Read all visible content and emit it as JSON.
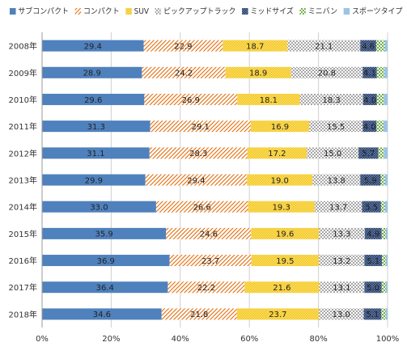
{
  "chart_data": {
    "type": "bar",
    "orientation": "horizontal",
    "stacked": true,
    "percent": true,
    "categories": [
      "2008年",
      "2009年",
      "2010年",
      "2011年",
      "2012年",
      "2013年",
      "2014年",
      "2015年",
      "2016年",
      "2017年",
      "2018年"
    ],
    "series": [
      {
        "name": "サブコンパクト",
        "color": "#4f81bd",
        "pattern": "solid",
        "values": [
          29.4,
          28.9,
          29.6,
          31.3,
          31.1,
          29.9,
          33.0,
          35.9,
          36.9,
          36.4,
          34.6
        ]
      },
      {
        "name": "コンパクト",
        "color": "#e46c0a",
        "pattern": "diag",
        "values": [
          22.9,
          24.2,
          26.9,
          29.1,
          28.3,
          29.4,
          26.6,
          24.6,
          23.7,
          22.2,
          21.8
        ]
      },
      {
        "name": "SUV",
        "color": "#f5c518",
        "pattern": "dots",
        "values": [
          18.7,
          18.9,
          18.1,
          16.9,
          17.2,
          19.0,
          19.3,
          19.6,
          19.5,
          21.6,
          23.7
        ]
      },
      {
        "name": "ピックアップトラック",
        "color": "#a6a6a6",
        "pattern": "check",
        "values": [
          21.1,
          20.8,
          18.3,
          15.5,
          15.0,
          13.8,
          13.7,
          13.3,
          13.2,
          13.1,
          13.0
        ]
      },
      {
        "name": "ミッドサイズ",
        "color": "#1f3864",
        "pattern": "dots",
        "values": [
          4.6,
          4.1,
          4.0,
          4.0,
          5.7,
          5.9,
          5.5,
          4.9,
          5.1,
          5.0,
          5.1
        ]
      },
      {
        "name": "ミニバン",
        "color": "#70ad47",
        "pattern": "check",
        "values": [
          2.5,
          2.2,
          2.0,
          2.0,
          1.7,
          1.2,
          1.1,
          1.2,
          1.1,
          1.2,
          1.3
        ]
      },
      {
        "name": "スポーツタイプ",
        "color": "#9dc3e6",
        "pattern": "solid",
        "values": [
          0.8,
          0.9,
          1.1,
          1.2,
          1.0,
          0.8,
          0.8,
          0.5,
          0.5,
          0.5,
          0.5
        ]
      }
    ],
    "labeled_series": [
      0,
      1,
      2,
      3,
      4
    ],
    "xlim": [
      0,
      100
    ],
    "xticks": [
      "0%",
      "20%",
      "40%",
      "60%",
      "80%",
      "100%"
    ],
    "title": "",
    "xlabel": "",
    "ylabel": "",
    "legend": "top",
    "grid": true
  }
}
